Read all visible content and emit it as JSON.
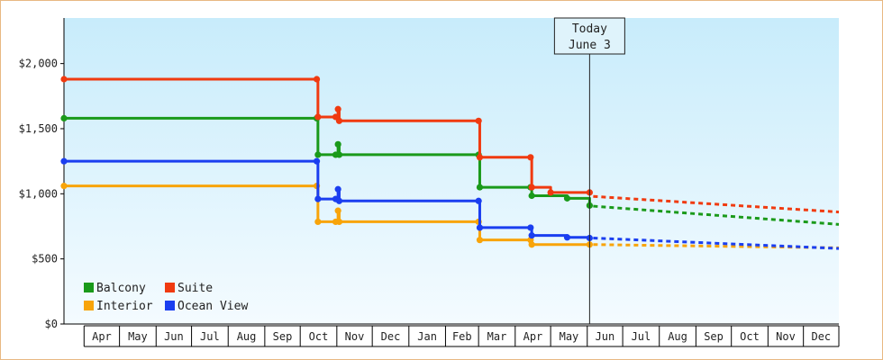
{
  "chart_data": {
    "type": "line",
    "step": true,
    "xlabel": "",
    "ylabel": "",
    "x_range": [
      "2013-03-15",
      "2014-12-31"
    ],
    "ylim": [
      0,
      2350
    ],
    "y_ticks": [
      0,
      500,
      1000,
      1500,
      2000
    ],
    "y_tick_labels": [
      "$0",
      "$500",
      "$1,000",
      "$1,500",
      "$2,000"
    ],
    "x_tick_labels": [
      "Apr",
      "May",
      "Jun",
      "Jul",
      "Aug",
      "Sep",
      "Oct",
      "Nov",
      "Dec",
      "Jan",
      "Feb",
      "Mar",
      "Apr",
      "May",
      "Jun",
      "Jul",
      "Aug",
      "Sep",
      "Oct",
      "Nov",
      "Dec"
    ],
    "today": {
      "date": "2014-06-03",
      "line1": "Today",
      "line2": "June 3"
    },
    "legend": {
      "placement": "bottom-left"
    },
    "series": [
      {
        "name": "Balcony",
        "color": "#1a9a1a",
        "points": [
          [
            "2013-03-15",
            1580
          ],
          [
            "2013-10-15",
            1580
          ],
          [
            "2013-10-16",
            1300
          ],
          [
            "2013-10-31",
            1300
          ],
          [
            "2013-11-02",
            1380
          ],
          [
            "2013-11-03",
            1300
          ],
          [
            "2014-03-01",
            1300
          ],
          [
            "2014-03-02",
            1050
          ],
          [
            "2014-04-14",
            1050
          ],
          [
            "2014-04-15",
            985
          ],
          [
            "2014-05-15",
            965
          ],
          [
            "2014-06-03",
            910
          ]
        ],
        "forecast": [
          [
            "2014-06-03",
            905
          ],
          [
            "2014-12-31",
            765
          ]
        ]
      },
      {
        "name": "Suite",
        "color": "#f03a10",
        "points": [
          [
            "2013-03-15",
            1880
          ],
          [
            "2013-10-15",
            1880
          ],
          [
            "2013-10-16",
            1590
          ],
          [
            "2013-10-31",
            1590
          ],
          [
            "2013-11-02",
            1650
          ],
          [
            "2013-11-03",
            1560
          ],
          [
            "2014-03-01",
            1560
          ],
          [
            "2014-03-02",
            1280
          ],
          [
            "2014-04-14",
            1280
          ],
          [
            "2014-04-15",
            1050
          ],
          [
            "2014-05-01",
            1010
          ],
          [
            "2014-06-03",
            1010
          ]
        ],
        "forecast": [
          [
            "2014-06-03",
            980
          ],
          [
            "2014-12-31",
            860
          ]
        ]
      },
      {
        "name": "Interior",
        "color": "#f8a40a",
        "points": [
          [
            "2013-03-15",
            1060
          ],
          [
            "2013-10-15",
            1060
          ],
          [
            "2013-10-16",
            785
          ],
          [
            "2013-10-31",
            785
          ],
          [
            "2013-11-02",
            870
          ],
          [
            "2013-11-03",
            785
          ],
          [
            "2014-03-01",
            785
          ],
          [
            "2014-03-02",
            645
          ],
          [
            "2014-04-14",
            645
          ],
          [
            "2014-04-15",
            610
          ],
          [
            "2014-06-03",
            610
          ]
        ],
        "forecast": [
          [
            "2014-06-03",
            610
          ],
          [
            "2014-12-31",
            585
          ]
        ]
      },
      {
        "name": "Ocean View",
        "color": "#1a3ef0",
        "points": [
          [
            "2013-03-15",
            1250
          ],
          [
            "2013-10-15",
            1250
          ],
          [
            "2013-10-16",
            960
          ],
          [
            "2013-10-31",
            960
          ],
          [
            "2013-11-02",
            1035
          ],
          [
            "2013-11-03",
            945
          ],
          [
            "2014-03-01",
            945
          ],
          [
            "2014-03-02",
            740
          ],
          [
            "2014-04-14",
            740
          ],
          [
            "2014-04-15",
            680
          ],
          [
            "2014-05-15",
            665
          ],
          [
            "2014-06-03",
            660
          ]
        ],
        "forecast": [
          [
            "2014-06-03",
            660
          ],
          [
            "2014-12-31",
            580
          ]
        ]
      }
    ]
  }
}
